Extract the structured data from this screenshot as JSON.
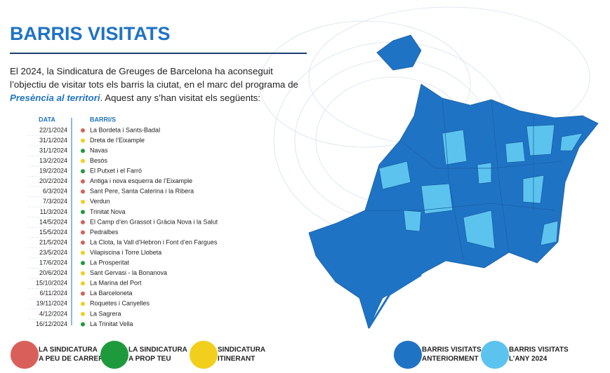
{
  "header": {
    "title": "BARRIS VISITATS"
  },
  "intro": {
    "text_before": "El 2024, la Sindicatura de Greuges de Barcelona ha aconseguit l’objectiu de visitar tots els barris la ciutat, en el marc del programa de ",
    "emphasis": "Presència al territori",
    "text_after": ". Aquest any s’han visitat els següents:"
  },
  "table": {
    "headers": [
      "DATA",
      "BARRI/S"
    ],
    "rows": [
      {
        "date": "22/1/2024",
        "barri": "La Bordeta i Sants-Badal",
        "color": "#d9605a"
      },
      {
        "date": "31/1/2024",
        "barri": "Dreta de l’Eixample",
        "color": "#f2cf1d"
      },
      {
        "date": "31/1/2024",
        "barri": "Navas",
        "color": "#1e9a3c"
      },
      {
        "date": "13/2/2024",
        "barri": "Besòs",
        "color": "#f2cf1d"
      },
      {
        "date": "19/2/2024",
        "barri": "El Putxet i el Farró",
        "color": "#1e9a3c"
      },
      {
        "date": "20/2/2024",
        "barri": "Antiga i nova esquerra de l’Eixample",
        "color": "#d9605a"
      },
      {
        "date": "6/3/2024",
        "barri": "Sant Pere, Santa Caterina i la Ribera",
        "color": "#d9605a"
      },
      {
        "date": "7/3/2024",
        "barri": "Verdun",
        "color": "#f2cf1d"
      },
      {
        "date": "11/3/2024",
        "barri": "Trinitat Nova",
        "color": "#1e9a3c"
      },
      {
        "date": "14/5/2024",
        "barri": "El Camp d’en Grassot i Gràcia Nova i la Salut",
        "color": "#d9605a"
      },
      {
        "date": "15/5/2024",
        "barri": "Pedralbes",
        "color": "#d9605a"
      },
      {
        "date": "21/5/2024",
        "barri": "La Clota, la Vall d’Hebron i Font d’en Fargues",
        "color": "#d9605a"
      },
      {
        "date": "23/5/2024",
        "barri": "Vilapiscina i Torre Llobeta",
        "color": "#f2cf1d"
      },
      {
        "date": "17/6/2024",
        "barri": "La Prosperitat",
        "color": "#1e9a3c"
      },
      {
        "date": "20/6/2024",
        "barri": "Sant Gervasi - la Bonanova",
        "color": "#f2cf1d"
      },
      {
        "date": "15/10/2024",
        "barri": "La Marina del Port",
        "color": "#f2cf1d"
      },
      {
        "date": "6/11/2024",
        "barri": "La Barceloneta",
        "color": "#d9605a"
      },
      {
        "date": "19/11/2024",
        "barri": "Roquetes i Canyelles",
        "color": "#f2cf1d"
      },
      {
        "date": "4/12/2024",
        "barri": "La Sagrera",
        "color": "#f2cf1d"
      },
      {
        "date": "16/12/2024",
        "barri": "La Trinitat Vella",
        "color": "#1e9a3c"
      }
    ]
  },
  "legend": [
    {
      "lines": [
        "LA SINDICATURA",
        "A PEU DE CARRER"
      ],
      "color": "#d9605a"
    },
    {
      "lines": [
        "LA SINDICATURA",
        "A PROP TEU"
      ],
      "color": "#1e9a3c"
    },
    {
      "lines": [
        "SINDICATURA",
        "ITINERANT"
      ],
      "color": "#f2cf1d"
    },
    {
      "lines": [
        "BARRIS VISITATS",
        "ANTERIORMENT"
      ],
      "color": "#1f73c4"
    },
    {
      "lines": [
        "BARRIS VISITATS",
        "L’ANY 2024"
      ],
      "color": "#5cc3ee"
    }
  ]
}
